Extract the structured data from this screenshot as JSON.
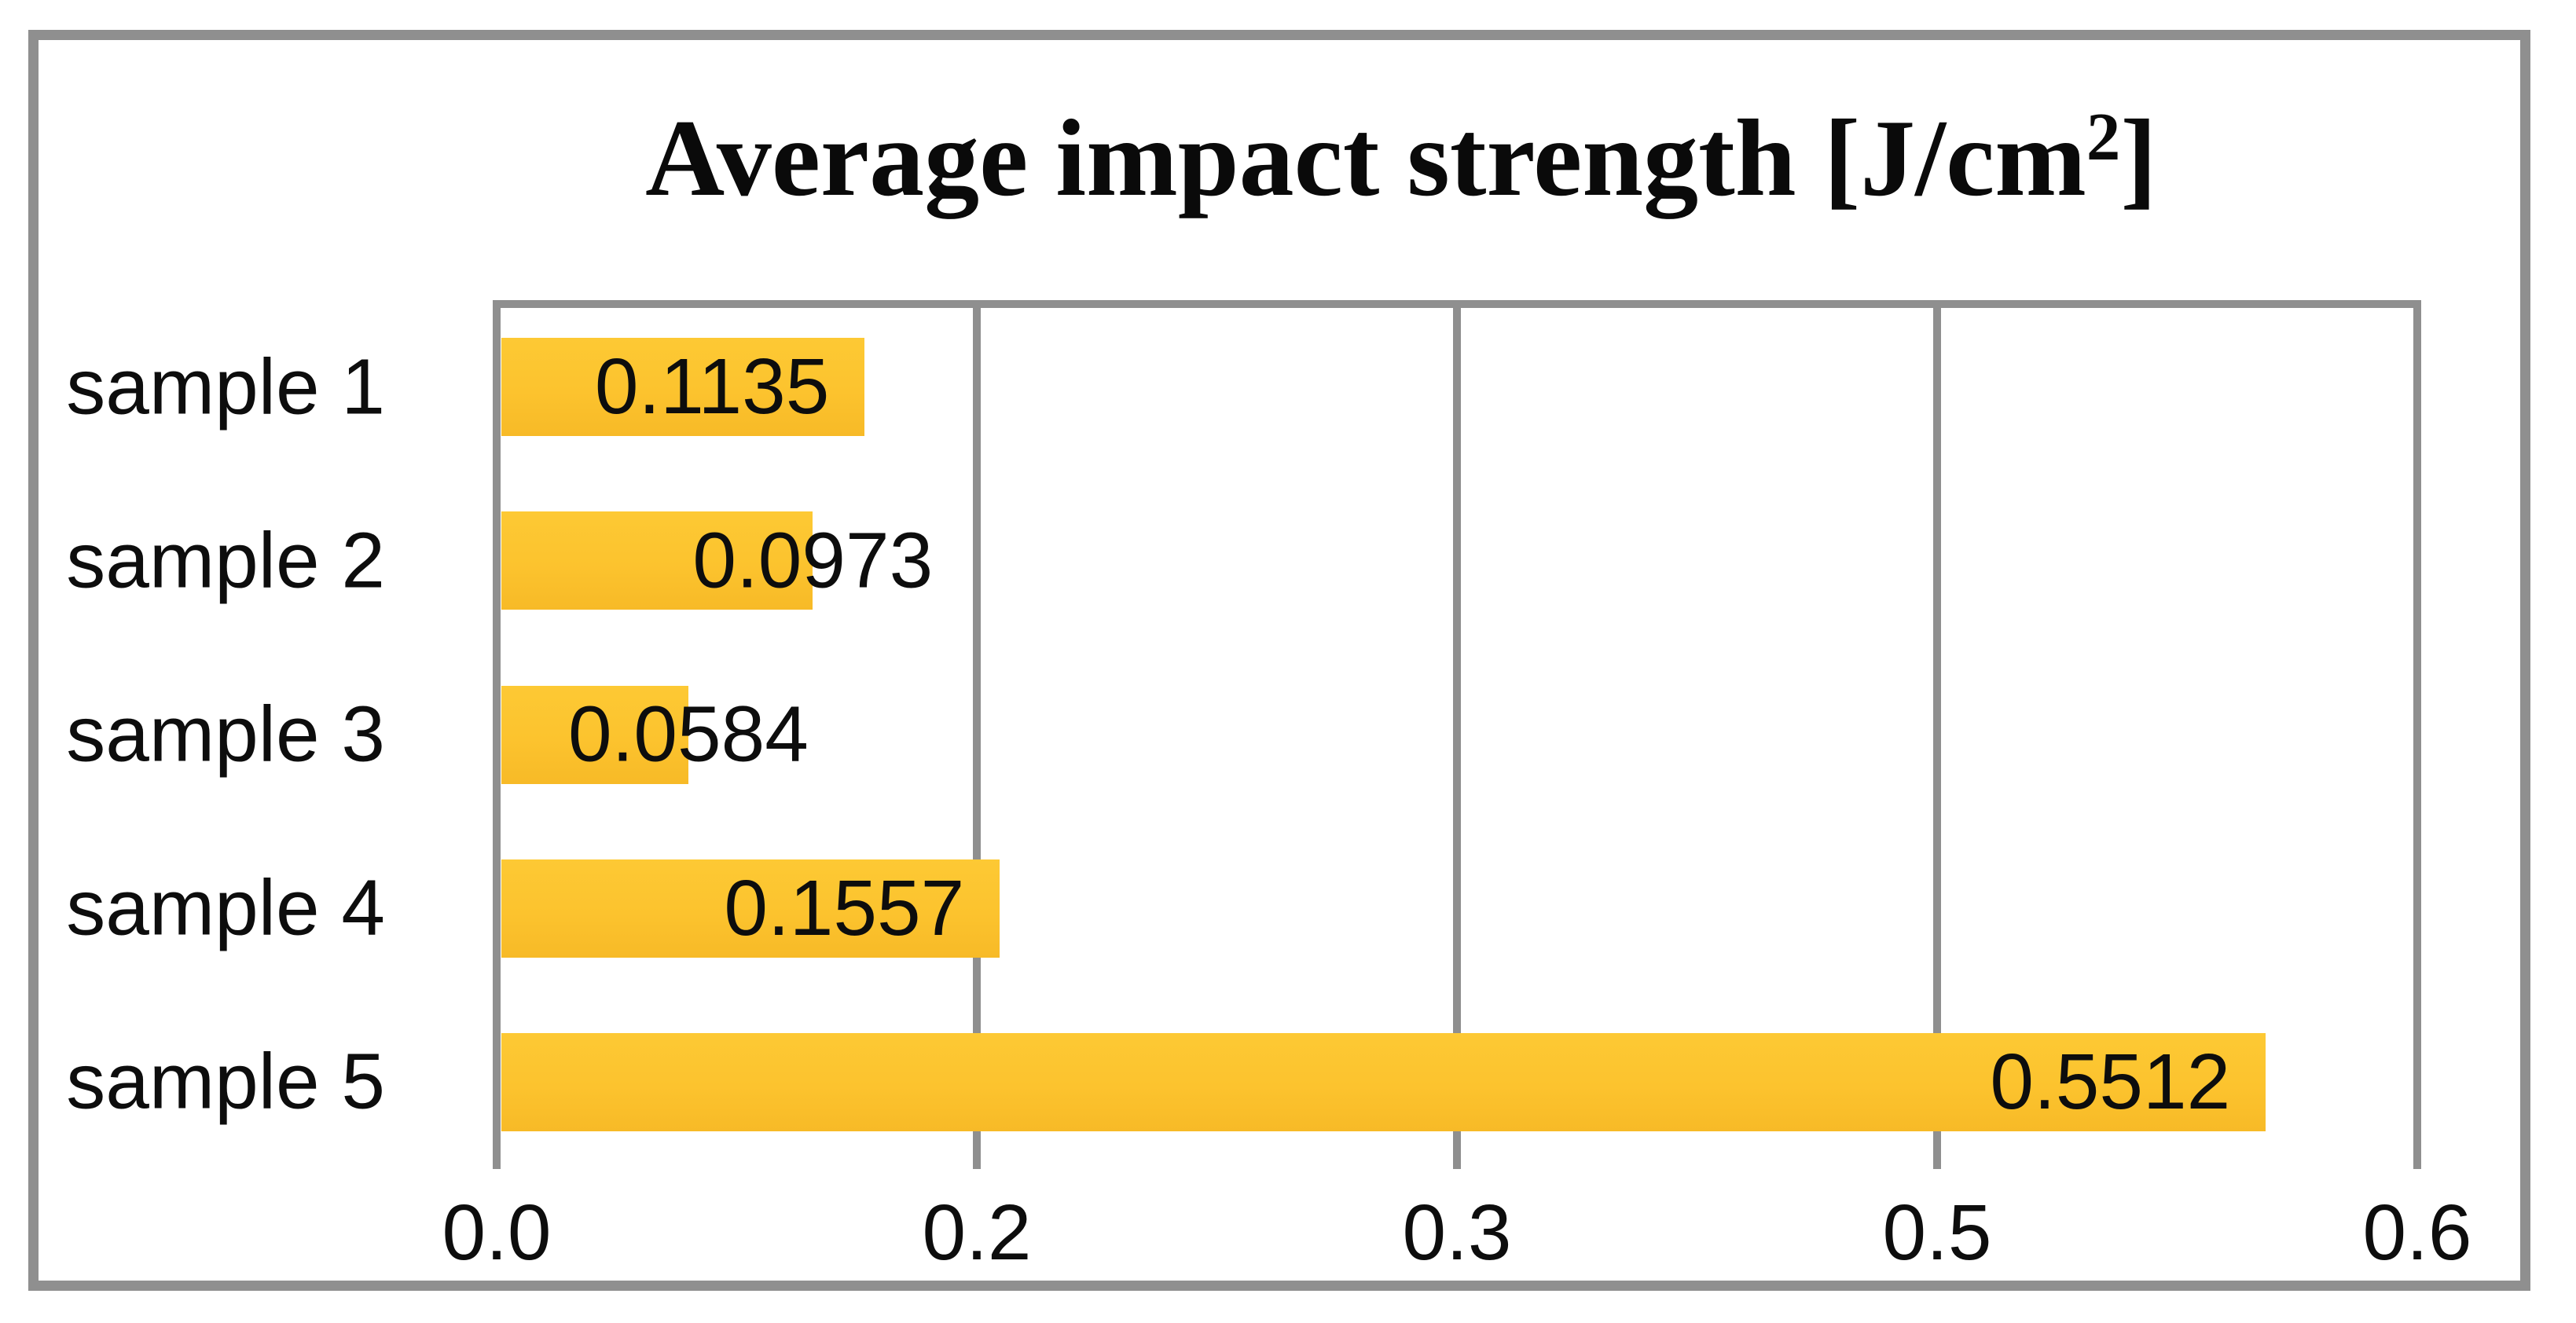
{
  "figure": {
    "title_prefix": "Average impact strength [J/cm",
    "title_sup": "2",
    "title_suffix": "]"
  },
  "chart_data": {
    "type": "bar",
    "orientation": "horizontal",
    "title": "Average impact strength [J/cm²]",
    "categories": [
      "sample 1",
      "sample 2",
      "sample 3",
      "sample 4",
      "sample 5"
    ],
    "values": [
      0.1135,
      0.0973,
      0.0584,
      0.1557,
      0.5512
    ],
    "value_labels": [
      "0.1135",
      "0.0973",
      "0.0584",
      "0.1557",
      "0.5512"
    ],
    "xlim": [
      0,
      0.6
    ],
    "x_ticks": [
      0,
      0.15,
      0.3,
      0.45,
      0.6
    ],
    "x_tick_labels": [
      "0.0",
      "0.2",
      "0.3",
      "0.5",
      "0.6"
    ],
    "grid": true,
    "legend": false,
    "value_label_position": "inside-end",
    "colors": {
      "bar": "#FCC32E",
      "line": "#8F8F8F",
      "frame_border": "#8F8F8F",
      "text": "#0D0D0D",
      "title_text": "#0A0A0A",
      "background": "#FFFFFF"
    }
  }
}
